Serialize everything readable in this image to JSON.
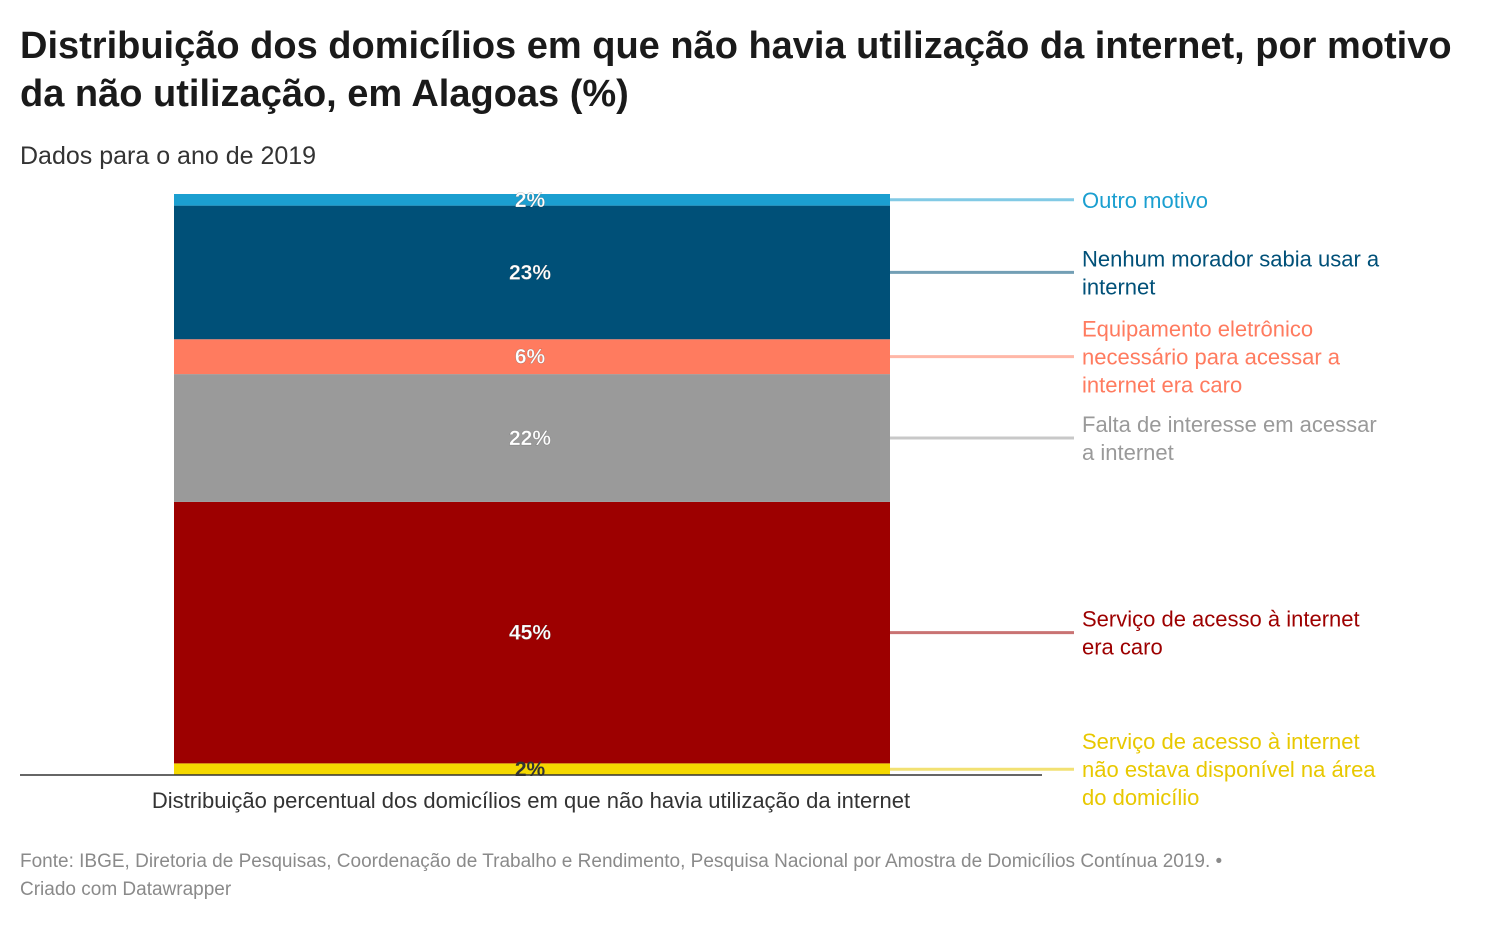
{
  "title": "Distribuição dos domicílios em que não havia utilização da internet, por motivo da não utilização, em Alagoas (%)",
  "subtitle": "Dados para o ano de 2019",
  "footer": {
    "source": "Fonte: IBGE, Diretoria de Pesquisas, Coordenação de Trabalho e Rendimento, Pesquisa Nacional por Amostra de Domicílios Contínua 2019.",
    "separator": " • ",
    "credit": "Criado com Datawrapper"
  },
  "chart_data": {
    "type": "bar",
    "stacked": true,
    "categories": [
      "Distribuição percentual dos domicílios em que não havia utilização da internet"
    ],
    "ylim": [
      0,
      100
    ],
    "legend_position": "right",
    "series": [
      {
        "name": "Serviço de acesso à internet não estava disponível na área do domicílio",
        "values": [
          2
        ],
        "label": "2%",
        "color": "#f5d800",
        "label_color": "#333333"
      },
      {
        "name": "Serviço de acesso à internet era caro",
        "values": [
          45
        ],
        "label": "45%",
        "color": "#9d0000",
        "label_color": "#ffffff"
      },
      {
        "name": "Falta de interesse em acessar a internet",
        "values": [
          22
        ],
        "label": "22%",
        "color": "#9a9a9a",
        "label_color": "#ffffff"
      },
      {
        "name": "Equipamento eletrônico necessário para acessar a internet era caro",
        "values": [
          6
        ],
        "label": "6%",
        "color": "#ff7b5f",
        "label_color": "#ffffff"
      },
      {
        "name": "Nenhum morador sabia usar a internet",
        "values": [
          23
        ],
        "label": "23%",
        "color": "#005078",
        "label_color": "#ffffff"
      },
      {
        "name": "Outro motivo",
        "values": [
          2
        ],
        "label": "2%",
        "color": "#1b9fd0",
        "label_color": "#ffffff"
      }
    ],
    "legend_colors": [
      "#e8c800",
      "#9d0000",
      "#9a9a9a",
      "#ff7b5f",
      "#005078",
      "#1b9fd0"
    ]
  }
}
